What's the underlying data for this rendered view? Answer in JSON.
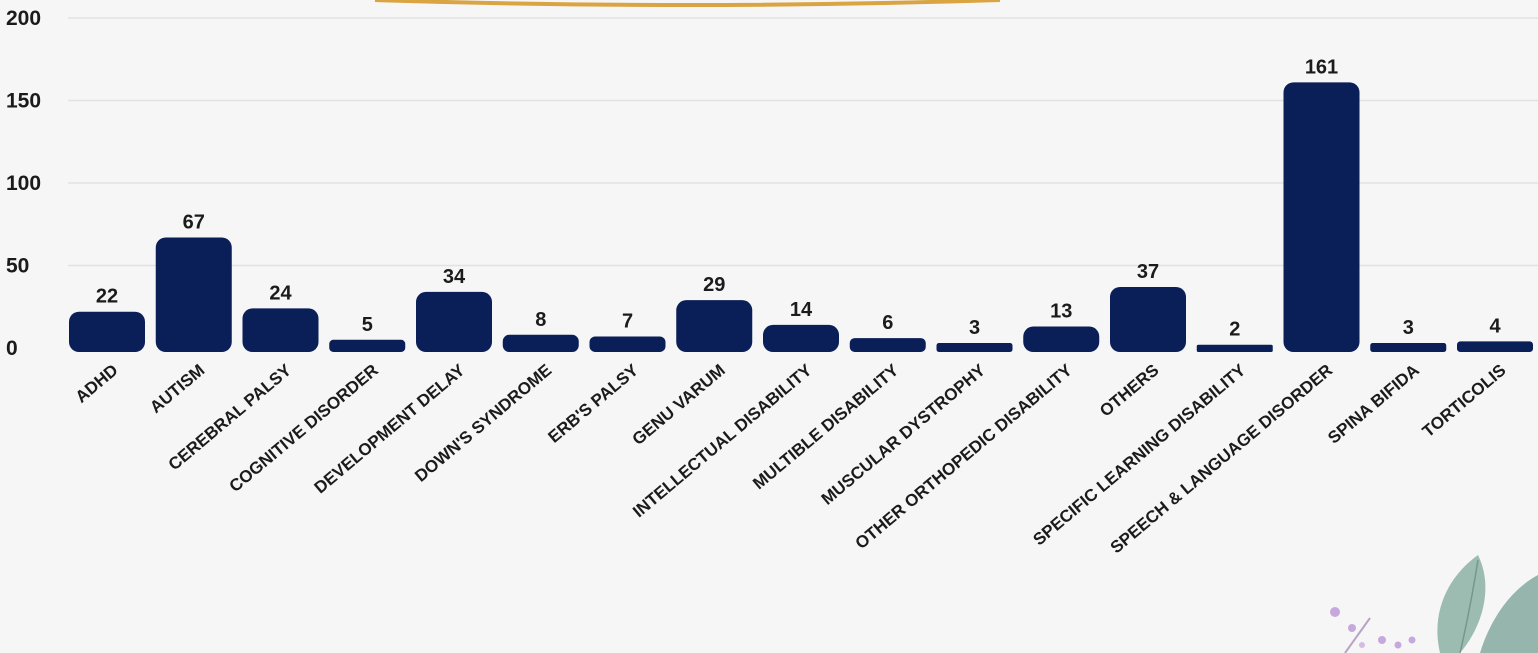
{
  "chart_data": {
    "type": "bar",
    "title": "",
    "xlabel": "",
    "ylabel": "",
    "ylim": [
      0,
      200
    ],
    "yticks": [
      0,
      50,
      100,
      150,
      200
    ],
    "grid": true,
    "legend": "none",
    "colors": {
      "bar": "#0a1f57",
      "grid": "#e2e2e4",
      "background": "#f6f6f7",
      "top_accent": "#d9a441"
    },
    "categories": [
      "ADHD",
      "AUTISM",
      "CEREBRAL PALSY",
      "COGNITIVE DISORDER",
      "DEVELOPMENT DELAY",
      "DOWN'S SYNDROME",
      "ERB'S PALSY",
      "GENU VARUM",
      "INTELLECTUAL DISABILITY",
      "MULTIBLE DISABILITY",
      "MUSCULAR DYSTROPHY",
      "OTHER ORTHOPEDIC DISABILITY",
      "OTHERS",
      "SPECIFIC LEARNING DISABILITY",
      "SPEECH & LANGUAGE DISORDER",
      "SPINA BIFIDA",
      "TORTICOLIS"
    ],
    "values": [
      22,
      67,
      24,
      5,
      34,
      8,
      7,
      29,
      14,
      6,
      3,
      13,
      37,
      2,
      161,
      3,
      4
    ]
  },
  "decoration": {
    "corner": "leaf-decoration-icon"
  }
}
